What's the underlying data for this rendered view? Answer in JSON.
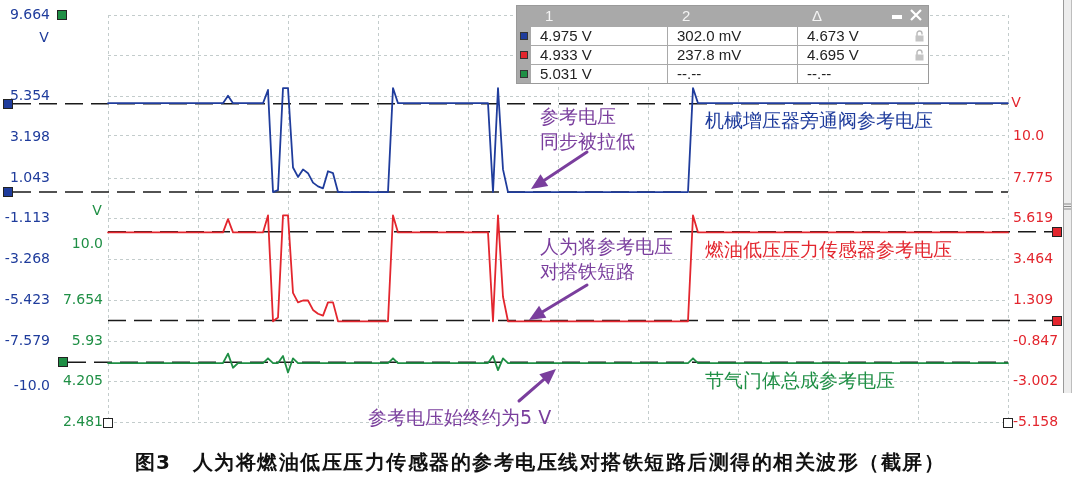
{
  "chart_data": {
    "type": "line",
    "title": "图3　人为将燃油低压压力传感器的参考电压线对搭铁短路后测得的相关波形（截屏）",
    "ylabel": "V",
    "y2label": "V",
    "y3label": "V",
    "categories": [
      null,
      null,
      null,
      null,
      null,
      null,
      null,
      null,
      null,
      null,
      null,
      null,
      null,
      null,
      null,
      null,
      null,
      null,
      null,
      null,
      null,
      null,
      null,
      null,
      null,
      null,
      null,
      null,
      null,
      null,
      null,
      null,
      null,
      null,
      null,
      null,
      null,
      null,
      null,
      null,
      null,
      null,
      null,
      null,
      null,
      null,
      null,
      null,
      null,
      null,
      null,
      null,
      null,
      null,
      null,
      null,
      null,
      null,
      null,
      null,
      null,
      null,
      null,
      null,
      null,
      null,
      null,
      null,
      null,
      null,
      null,
      null,
      null,
      null,
      null,
      null,
      null,
      null,
      null,
      null,
      null,
      null,
      null,
      null,
      null,
      null,
      null,
      null,
      null,
      null,
      null,
      null,
      null,
      null,
      null,
      null,
      null,
      null,
      null,
      null,
      null,
      null,
      null,
      null,
      null,
      null,
      null,
      null,
      null,
      null,
      null,
      null,
      null,
      null,
      null,
      null,
      null,
      null,
      null,
      null,
      null,
      null,
      null,
      null,
      null,
      null,
      null,
      null,
      null,
      null,
      null,
      null,
      null,
      null,
      null,
      null,
      null,
      null,
      null,
      null,
      null,
      null,
      null,
      null,
      null,
      null,
      null,
      null,
      null,
      null,
      null,
      null,
      null,
      null,
      null,
      null,
      null,
      null,
      null,
      null,
      null,
      null,
      null,
      null,
      null,
      null,
      null,
      null,
      null,
      null,
      null,
      null,
      null,
      null,
      null,
      null,
      null,
      null,
      null,
      null,
      null
    ],
    "series": [
      {
        "name": "机械增压器旁通阀参考电压",
        "color": "#1f3c9c",
        "values": [
          5,
          5,
          5,
          5,
          5,
          5,
          5,
          5,
          5,
          5,
          5,
          5,
          5,
          5,
          5,
          5,
          5,
          5,
          5,
          5,
          5,
          5,
          5,
          5,
          5.4,
          5,
          5,
          5,
          5,
          5,
          5,
          5,
          5.7,
          0.3,
          0.4,
          5.8,
          5.8,
          1.6,
          1.1,
          1.5,
          1.3,
          0.8,
          0.6,
          0.5,
          1.4,
          1.3,
          0.3,
          0.3,
          0.3,
          0.3,
          0.3,
          0.3,
          0.3,
          0.3,
          0.3,
          0.3,
          0.3,
          5.8,
          5,
          5,
          5,
          5,
          5,
          5,
          5,
          5,
          5,
          5,
          5,
          5,
          5,
          5,
          5,
          5,
          5,
          5,
          5,
          0.3,
          5.8,
          1.5,
          0.3,
          0.3,
          0.3,
          0.3,
          0.3,
          0.3,
          0.3,
          0.3,
          0.3,
          0.3,
          0.3,
          0.3,
          0.3,
          0.3,
          0.3,
          0.3,
          0.3,
          0.3,
          0.3,
          0.3,
          0.3,
          0.3,
          0.3,
          0.3,
          0.3,
          0.3,
          0.3,
          0.3,
          0.3,
          0.3,
          0.3,
          0.3,
          0.3,
          0.3,
          0.3,
          0.3,
          0.3,
          5.8,
          5,
          5,
          5,
          5,
          5,
          5,
          5,
          5,
          5,
          5,
          5,
          5,
          5,
          5,
          5,
          5,
          5,
          5,
          5,
          5,
          5,
          5,
          5,
          5,
          5,
          5,
          5,
          5,
          5,
          5,
          5,
          5,
          5,
          5,
          5,
          5,
          5,
          5,
          5,
          5,
          5,
          5,
          5,
          5,
          5,
          5,
          5,
          5,
          5,
          5,
          5,
          5,
          5,
          5,
          5,
          5,
          5,
          5,
          5,
          5,
          5,
          5,
          5
        ]
      },
      {
        "name": "燃油低压压力传感器参考电压",
        "color": "#e3262e",
        "axis": "y2",
        "values": [
          4.9,
          4.9,
          4.9,
          4.9,
          4.9,
          4.9,
          4.9,
          4.9,
          4.9,
          4.9,
          4.9,
          4.9,
          4.9,
          4.9,
          4.9,
          4.9,
          4.9,
          4.9,
          4.9,
          4.9,
          4.9,
          4.9,
          4.9,
          4.9,
          5.6,
          4.9,
          4.9,
          4.9,
          4.9,
          4.9,
          4.9,
          4.9,
          5.8,
          0.2,
          0.4,
          5.8,
          5.8,
          1.7,
          1.2,
          1.3,
          1.3,
          0.8,
          0.6,
          0.5,
          1.2,
          1.2,
          0.2,
          0.2,
          0.2,
          0.2,
          0.2,
          0.2,
          0.2,
          0.2,
          0.2,
          0.2,
          0.2,
          5.8,
          4.9,
          4.9,
          4.9,
          4.9,
          4.9,
          4.9,
          4.9,
          4.9,
          4.9,
          4.9,
          4.9,
          4.9,
          4.9,
          4.9,
          4.9,
          4.9,
          4.9,
          4.9,
          4.9,
          0.2,
          5.8,
          1.5,
          0.2,
          0.2,
          0.2,
          0.2,
          0.2,
          0.2,
          0.2,
          0.2,
          0.2,
          0.2,
          0.2,
          0.2,
          0.2,
          0.2,
          0.2,
          0.2,
          0.2,
          0.2,
          0.2,
          0.2,
          0.2,
          0.2,
          0.2,
          0.2,
          0.2,
          0.2,
          0.2,
          0.2,
          0.2,
          0.2,
          0.2,
          0.2,
          0.2,
          0.2,
          0.2,
          0.2,
          0.2,
          5.8,
          4.9,
          4.9,
          4.9,
          4.9,
          4.9,
          4.9,
          4.9,
          4.9,
          4.9,
          4.9,
          4.9,
          4.9,
          4.9,
          4.9,
          4.9,
          4.9,
          4.9,
          4.9,
          4.9,
          4.9,
          4.9,
          4.9,
          4.9,
          4.9,
          4.9,
          4.9,
          4.9,
          4.9,
          4.9,
          4.9,
          4.9,
          4.9,
          4.9,
          4.9,
          4.9,
          4.9,
          4.9,
          4.9,
          4.9,
          4.9,
          4.9,
          4.9,
          4.9,
          4.9,
          4.9,
          4.9,
          4.9,
          4.9,
          4.9,
          4.9,
          4.9,
          4.9,
          4.9,
          4.9,
          4.9,
          4.9,
          4.9,
          4.9,
          4.9,
          4.9,
          4.9,
          4.9,
          4.9
        ]
      },
      {
        "name": "节气门体总成参考电压",
        "color": "#1f8f45",
        "axis": "y3",
        "values": [
          5,
          5,
          5,
          5,
          5,
          5,
          5,
          5,
          5,
          5,
          5,
          5,
          5,
          5,
          5,
          5,
          5,
          5,
          5,
          5,
          5,
          5,
          5,
          5,
          5.4,
          4.8,
          5,
          5,
          5,
          5,
          5,
          5,
          5.2,
          5,
          5,
          5.3,
          4.6,
          5.2,
          5,
          5,
          5,
          5,
          5,
          5,
          5,
          5,
          5,
          5,
          5,
          5,
          5,
          5,
          5,
          5,
          5,
          5,
          5,
          5.2,
          5,
          5,
          5,
          5,
          5,
          5,
          5,
          5,
          5,
          5,
          5,
          5,
          5,
          5,
          5,
          5,
          5,
          5,
          5,
          5.3,
          4.7,
          5.2,
          5,
          5,
          5,
          5,
          5,
          5,
          5,
          5,
          5,
          5,
          5,
          5,
          5,
          5,
          5,
          5,
          5,
          5,
          5,
          5,
          5,
          5,
          5,
          5,
          5,
          5,
          5,
          5,
          5,
          5,
          5,
          5,
          5,
          5,
          5,
          5,
          5,
          5.2,
          5,
          5,
          5,
          5,
          5,
          5,
          5,
          5,
          5,
          5,
          5,
          5,
          5,
          5,
          5,
          5,
          5,
          5,
          5,
          5,
          5,
          5,
          5,
          5,
          5,
          5,
          5,
          5,
          5,
          5,
          5,
          5,
          5,
          5,
          5,
          5,
          5,
          5,
          5,
          5,
          5,
          5,
          5,
          5,
          5,
          5,
          5,
          5,
          5,
          5,
          5,
          5,
          5,
          5,
          5,
          5,
          5,
          5,
          5,
          5,
          5,
          5,
          5
        ]
      }
    ],
    "ylim": [
      -11.891,
      9.664
    ],
    "yticks": [
      {
        "value": -10,
        "label": "-10.0"
      },
      -7.579,
      -5.423,
      -3.268,
      -1.113,
      1.043,
      3.198,
      5.354,
      9.664
    ],
    "y2lim": [
      -5.158,
      16.397
    ],
    "y2ticks": [
      -5.158,
      -3.002,
      -0.847,
      1.309,
      3.464,
      5.619,
      7.775,
      {
        "value": 10,
        "label": "10.0"
      },
      {
        "value": 12.086,
        "label": null
      },
      {
        "value": 14.242,
        "label": null
      },
      {
        "value": 16.397,
        "label": null
      }
    ],
    "y3lim": [
      2.481,
      19.721
    ],
    "y3ticks": [
      2.481,
      4.205,
      5.93,
      7.654,
      {
        "value": 10,
        "label": "10.0"
      }
    ],
    "ref_lines": [
      {
        "axis": "y",
        "value": 4.975,
        "color": "#1a1a1a",
        "line_style": "dashed"
      },
      {
        "axis": "y",
        "value": 0.302,
        "color": "#1a1a1a",
        "line_style": "dashed"
      },
      {
        "axis": "y2",
        "value": 4.933,
        "color": "#1a1a1a",
        "line_style": "dashed"
      },
      {
        "axis": "y2",
        "value": 0.2378,
        "color": "#1a1a1a",
        "line_style": "dashed"
      },
      {
        "axis": "y3",
        "value": 5.031,
        "color": "#1a1a1a",
        "line_style": "dashed"
      }
    ],
    "annotations": [
      "1",
      "2",
      "Δ",
      "4.975 V",
      "302.0 mV",
      "4.673 V",
      "4.933 V",
      "237.8 mV",
      "4.695 V",
      "5.031 V",
      "--.--",
      "--.--",
      "参考电压同步被拉低",
      "人为将参考电压对搭铁短路",
      "参考电压始终约为5 V"
    ],
    "grid": true,
    "marker": "none"
  }
}
